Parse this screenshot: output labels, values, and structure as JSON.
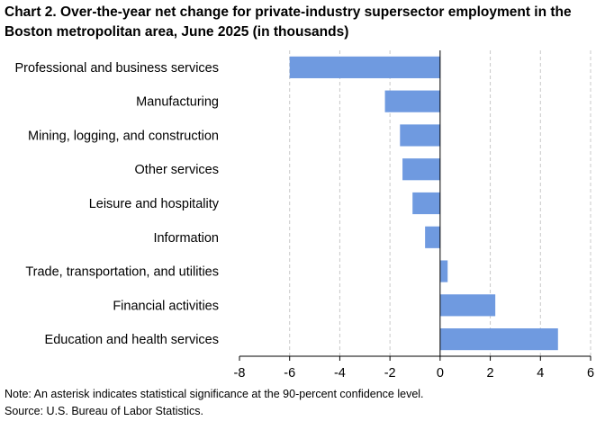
{
  "chart_data": {
    "type": "bar",
    "orientation": "horizontal",
    "title": "Chart 2. Over-the-year net change for private-industry supersector employment in the Boston metropolitan area, June 2025 (in thousands)",
    "categories": [
      "Professional and business services",
      "Manufacturing",
      "Mining, logging, and construction",
      "Other services",
      "Leisure and hospitality",
      "Information",
      "Trade, transportation, and utilities",
      "Financial activities",
      "Education and health services"
    ],
    "values": [
      -6.0,
      -2.2,
      -1.6,
      -1.5,
      -1.1,
      -0.6,
      0.3,
      2.2,
      4.7
    ],
    "xlim": [
      -8,
      6
    ],
    "xticks": [
      -8,
      -6,
      -4,
      -2,
      0,
      2,
      4,
      6
    ],
    "xlabel": "",
    "ylabel": "",
    "grid": "vertical dashed",
    "bar_color": "#6f9ae0",
    "note": "Note: An asterisk indicates statistical significance at the 90-percent confidence level.",
    "source": "Source: U.S. Bureau of Labor Statistics."
  }
}
